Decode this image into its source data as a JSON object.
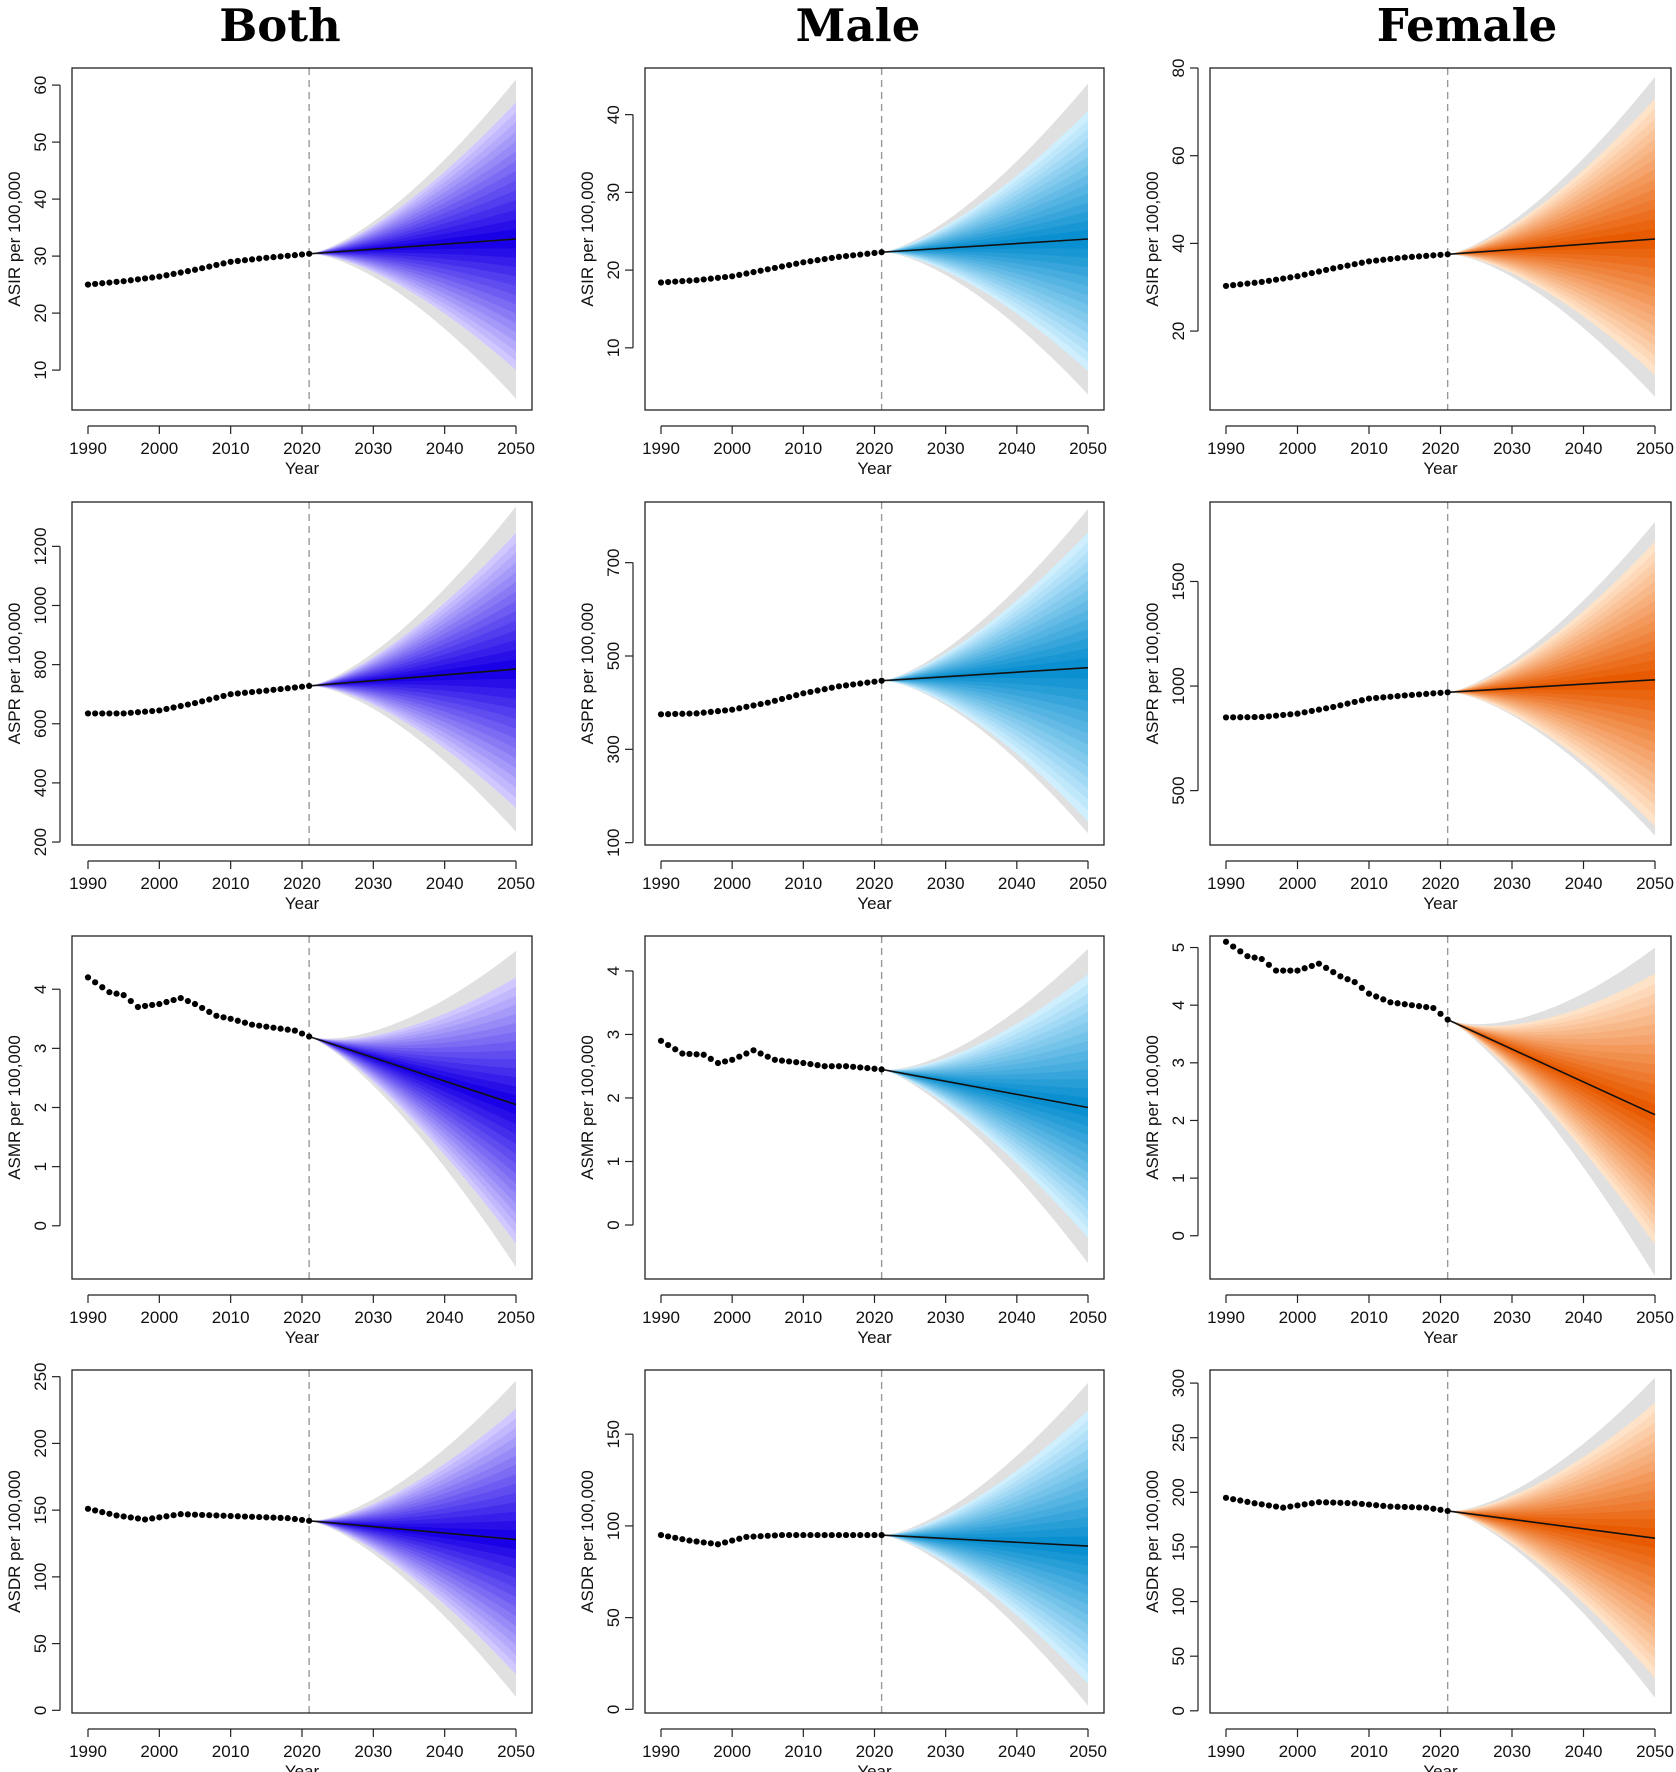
{
  "column_titles": [
    "Both",
    "Male",
    "Female"
  ],
  "colors": {
    "both": {
      "dark": "#1a00e6",
      "light": "#d0c8ff"
    },
    "male": {
      "dark": "#0a8fd0",
      "light": "#cfefff"
    },
    "female": {
      "dark": "#e85a00",
      "light": "#ffe3c8"
    },
    "outer_band": "#e0e0e0",
    "divider": "#999999",
    "points": "#000000"
  },
  "chart_data": [
    {
      "type": "area",
      "id": "both-asir",
      "column": "Both",
      "ylabel": "ASIR per 100,000",
      "xlabel": "Year",
      "xticks": [
        1990,
        2000,
        2010,
        2020,
        2030,
        2040,
        2050
      ],
      "xlim": [
        1990,
        2050
      ],
      "ylim": [
        3,
        63
      ],
      "yticks": [
        10,
        20,
        30,
        40,
        50,
        60
      ],
      "divider_year": 2021,
      "observed": {
        "years_from": 1990,
        "years_to": 2021,
        "knots": [
          [
            1990,
            25
          ],
          [
            1995,
            25.6
          ],
          [
            2000,
            26.4
          ],
          [
            2005,
            27.6
          ],
          [
            2010,
            29
          ],
          [
            2015,
            29.7
          ],
          [
            2021,
            30.4
          ]
        ]
      },
      "projection": {
        "mean_start": 30.4,
        "mean_end": 33,
        "outer_band_2050": [
          5,
          61
        ],
        "inner_band_2050": [
          10,
          57
        ]
      }
    },
    {
      "type": "area",
      "id": "male-asir",
      "column": "Male",
      "ylabel": "ASIR per 100,000",
      "xlabel": "Year",
      "xticks": [
        1990,
        2000,
        2010,
        2020,
        2030,
        2040,
        2050
      ],
      "xlim": [
        1990,
        2050
      ],
      "ylim": [
        2,
        46
      ],
      "yticks": [
        10,
        20,
        30,
        40
      ],
      "divider_year": 2021,
      "observed": {
        "years_from": 1990,
        "years_to": 2021,
        "knots": [
          [
            1990,
            18.4
          ],
          [
            1995,
            18.7
          ],
          [
            2000,
            19.2
          ],
          [
            2005,
            20.1
          ],
          [
            2010,
            21
          ],
          [
            2015,
            21.7
          ],
          [
            2021,
            22.3
          ]
        ]
      },
      "projection": {
        "mean_start": 22.3,
        "mean_end": 24,
        "outer_band_2050": [
          4,
          44
        ],
        "inner_band_2050": [
          7,
          40.5
        ]
      }
    },
    {
      "type": "area",
      "id": "female-asir",
      "column": "Female",
      "ylabel": "ASIR per 100,000",
      "xlabel": "Year",
      "xticks": [
        1990,
        2000,
        2010,
        2020,
        2030,
        2040,
        2050
      ],
      "xlim": [
        1990,
        2050
      ],
      "ylim": [
        2,
        80
      ],
      "yticks": [
        20,
        40,
        60,
        80
      ],
      "divider_year": 2021,
      "observed": {
        "years_from": 1990,
        "years_to": 2021,
        "knots": [
          [
            1990,
            30.3
          ],
          [
            1995,
            31.2
          ],
          [
            2000,
            32.5
          ],
          [
            2005,
            34.3
          ],
          [
            2010,
            35.9
          ],
          [
            2015,
            36.8
          ],
          [
            2021,
            37.5
          ]
        ]
      },
      "projection": {
        "mean_start": 37.5,
        "mean_end": 41,
        "outer_band_2050": [
          5,
          78
        ],
        "inner_band_2050": [
          10,
          73
        ]
      }
    },
    {
      "type": "area",
      "id": "both-aspr",
      "column": "Both",
      "ylabel": "ASPR per 100,000",
      "xlabel": "Year",
      "xticks": [
        1990,
        2000,
        2010,
        2020,
        2030,
        2040,
        2050
      ],
      "xlim": [
        1990,
        2050
      ],
      "ylim": [
        190,
        1350
      ],
      "yticks": [
        200,
        400,
        600,
        800,
        1000,
        1200
      ],
      "divider_year": 2021,
      "observed": {
        "years_from": 1990,
        "years_to": 2021,
        "knots": [
          [
            1990,
            635
          ],
          [
            1995,
            635
          ],
          [
            2000,
            645
          ],
          [
            2005,
            670
          ],
          [
            2010,
            700
          ],
          [
            2015,
            712
          ],
          [
            2021,
            728
          ]
        ]
      },
      "projection": {
        "mean_start": 728,
        "mean_end": 785,
        "outer_band_2050": [
          235,
          1335
        ],
        "inner_band_2050": [
          315,
          1245
        ]
      }
    },
    {
      "type": "area",
      "id": "male-aspr",
      "column": "Male",
      "ylabel": "ASPR per 100,000",
      "xlabel": "Year",
      "xticks": [
        1990,
        2000,
        2010,
        2020,
        2030,
        2040,
        2050
      ],
      "xlim": [
        1990,
        2050
      ],
      "ylim": [
        95,
        830
      ],
      "yticks": [
        100,
        300,
        500,
        700
      ],
      "divider_year": 2021,
      "observed": {
        "years_from": 1990,
        "years_to": 2021,
        "knots": [
          [
            1990,
            375
          ],
          [
            1995,
            377
          ],
          [
            2000,
            385
          ],
          [
            2005,
            400
          ],
          [
            2010,
            420
          ],
          [
            2015,
            435
          ],
          [
            2021,
            447
          ]
        ]
      },
      "projection": {
        "mean_start": 447,
        "mean_end": 475,
        "outer_band_2050": [
          120,
          815
        ],
        "inner_band_2050": [
          145,
          765
        ]
      }
    },
    {
      "type": "area",
      "id": "female-aspr",
      "column": "Female",
      "ylabel": "ASPR per 100,000",
      "xlabel": "Year",
      "xticks": [
        1990,
        2000,
        2010,
        2020,
        2030,
        2040,
        2050
      ],
      "xlim": [
        1990,
        2050
      ],
      "ylim": [
        240,
        1880
      ],
      "yticks": [
        500,
        1000,
        1500
      ],
      "divider_year": 2021,
      "observed": {
        "years_from": 1990,
        "years_to": 2021,
        "knots": [
          [
            1990,
            850
          ],
          [
            1995,
            852
          ],
          [
            2000,
            868
          ],
          [
            2005,
            900
          ],
          [
            2010,
            940
          ],
          [
            2015,
            955
          ],
          [
            2021,
            970
          ]
        ]
      },
      "projection": {
        "mean_start": 970,
        "mean_end": 1030,
        "outer_band_2050": [
          285,
          1785
        ],
        "inner_band_2050": [
          330,
          1690
        ]
      }
    },
    {
      "type": "area",
      "id": "both-asmr",
      "column": "Both",
      "ylabel": "ASMR per 100,000",
      "xlabel": "Year",
      "xticks": [
        1990,
        2000,
        2010,
        2020,
        2030,
        2040,
        2050
      ],
      "xlim": [
        1990,
        2050
      ],
      "ylim": [
        -0.9,
        4.9
      ],
      "yticks": [
        0,
        1,
        2,
        3,
        4
      ],
      "divider_year": 2021,
      "observed": {
        "years_from": 1990,
        "years_to": 2021,
        "knots": [
          [
            1990,
            4.2
          ],
          [
            1993,
            3.95
          ],
          [
            1995,
            3.9
          ],
          [
            1997,
            3.7
          ],
          [
            2000,
            3.75
          ],
          [
            2003,
            3.85
          ],
          [
            2005,
            3.75
          ],
          [
            2008,
            3.55
          ],
          [
            2010,
            3.5
          ],
          [
            2013,
            3.4
          ],
          [
            2016,
            3.35
          ],
          [
            2019,
            3.3
          ],
          [
            2021,
            3.2
          ]
        ]
      },
      "projection": {
        "mean_start": 3.2,
        "mean_end": 2.05,
        "outer_band_2050": [
          -0.7,
          4.65
        ],
        "inner_band_2050": [
          -0.3,
          4.2
        ]
      }
    },
    {
      "type": "area",
      "id": "male-asmr",
      "column": "Male",
      "ylabel": "ASMR per 100,000",
      "xlabel": "Year",
      "xticks": [
        1990,
        2000,
        2010,
        2020,
        2030,
        2040,
        2050
      ],
      "xlim": [
        1990,
        2050
      ],
      "ylim": [
        -0.85,
        4.55
      ],
      "yticks": [
        0,
        1,
        2,
        3,
        4
      ],
      "divider_year": 2021,
      "observed": {
        "years_from": 1990,
        "years_to": 2021,
        "knots": [
          [
            1990,
            2.9
          ],
          [
            1993,
            2.7
          ],
          [
            1996,
            2.68
          ],
          [
            1998,
            2.55
          ],
          [
            2000,
            2.6
          ],
          [
            2003,
            2.75
          ],
          [
            2006,
            2.6
          ],
          [
            2010,
            2.55
          ],
          [
            2013,
            2.5
          ],
          [
            2016,
            2.5
          ],
          [
            2021,
            2.45
          ]
        ]
      },
      "projection": {
        "mean_start": 2.45,
        "mean_end": 1.85,
        "outer_band_2050": [
          -0.6,
          4.35
        ],
        "inner_band_2050": [
          -0.2,
          3.95
        ]
      }
    },
    {
      "type": "area",
      "id": "female-asmr",
      "column": "Female",
      "ylabel": "ASMR per 100,000",
      "xlabel": "Year",
      "xticks": [
        1990,
        2000,
        2010,
        2020,
        2030,
        2040,
        2050
      ],
      "xlim": [
        1990,
        2050
      ],
      "ylim": [
        -0.75,
        5.2
      ],
      "yticks": [
        0,
        1,
        2,
        3,
        4,
        5
      ],
      "divider_year": 2021,
      "observed": {
        "years_from": 1990,
        "years_to": 2021,
        "knots": [
          [
            1990,
            5.1
          ],
          [
            1993,
            4.85
          ],
          [
            1995,
            4.8
          ],
          [
            1997,
            4.6
          ],
          [
            2000,
            4.6
          ],
          [
            2003,
            4.72
          ],
          [
            2006,
            4.5
          ],
          [
            2008,
            4.4
          ],
          [
            2010,
            4.2
          ],
          [
            2013,
            4.05
          ],
          [
            2016,
            4
          ],
          [
            2019,
            3.95
          ],
          [
            2021,
            3.75
          ]
        ]
      },
      "projection": {
        "mean_start": 3.75,
        "mean_end": 2.1,
        "outer_band_2050": [
          -0.7,
          5
        ],
        "inner_band_2050": [
          -0.15,
          4.55
        ]
      }
    },
    {
      "type": "area",
      "id": "both-asdr",
      "column": "Both",
      "ylabel": "ASDR per 100,000",
      "xlabel": "Year",
      "xticks": [
        1990,
        2000,
        2010,
        2020,
        2030,
        2040,
        2050
      ],
      "xlim": [
        1990,
        2050
      ],
      "ylim": [
        -2,
        255
      ],
      "yticks": [
        0,
        50,
        100,
        150,
        200,
        250
      ],
      "divider_year": 2021,
      "observed": {
        "years_from": 1990,
        "years_to": 2021,
        "knots": [
          [
            1990,
            151
          ],
          [
            1994,
            146
          ],
          [
            1998,
            143
          ],
          [
            2003,
            147
          ],
          [
            2008,
            146
          ],
          [
            2013,
            145
          ],
          [
            2018,
            144
          ],
          [
            2021,
            142
          ]
        ]
      },
      "projection": {
        "mean_start": 142,
        "mean_end": 128,
        "outer_band_2050": [
          10,
          247
        ],
        "inner_band_2050": [
          27,
          226
        ]
      }
    },
    {
      "type": "area",
      "id": "male-asdr",
      "column": "Male",
      "ylabel": "ASDR per 100,000",
      "xlabel": "Year",
      "xticks": [
        1990,
        2000,
        2010,
        2020,
        2030,
        2040,
        2050
      ],
      "xlim": [
        1990,
        2050
      ],
      "ylim": [
        -2,
        185
      ],
      "yticks": [
        0,
        50,
        100,
        150
      ],
      "divider_year": 2021,
      "observed": {
        "years_from": 1990,
        "years_to": 2021,
        "knots": [
          [
            1990,
            95
          ],
          [
            1994,
            92
          ],
          [
            1998,
            90
          ],
          [
            2002,
            94
          ],
          [
            2007,
            95
          ],
          [
            2012,
            95
          ],
          [
            2017,
            95
          ],
          [
            2021,
            95
          ]
        ]
      },
      "projection": {
        "mean_start": 95,
        "mean_end": 89,
        "outer_band_2050": [
          2,
          178
        ],
        "inner_band_2050": [
          14,
          163
        ]
      }
    },
    {
      "type": "area",
      "id": "female-asdr",
      "column": "Female",
      "ylabel": "ASDR per 100,000",
      "xlabel": "Year",
      "xticks": [
        1990,
        2000,
        2010,
        2020,
        2030,
        2040,
        2050
      ],
      "xlim": [
        1990,
        2050
      ],
      "ylim": [
        -2,
        312
      ],
      "yticks": [
        0,
        50,
        100,
        150,
        200,
        250,
        300
      ],
      "divider_year": 2021,
      "observed": {
        "years_from": 1990,
        "years_to": 2021,
        "knots": [
          [
            1990,
            195
          ],
          [
            1994,
            190
          ],
          [
            1998,
            186
          ],
          [
            2003,
            191
          ],
          [
            2008,
            190
          ],
          [
            2013,
            187
          ],
          [
            2018,
            186
          ],
          [
            2021,
            183
          ]
        ]
      },
      "projection": {
        "mean_start": 183,
        "mean_end": 158,
        "outer_band_2050": [
          12,
          305
        ],
        "inner_band_2050": [
          30,
          282
        ]
      }
    }
  ]
}
